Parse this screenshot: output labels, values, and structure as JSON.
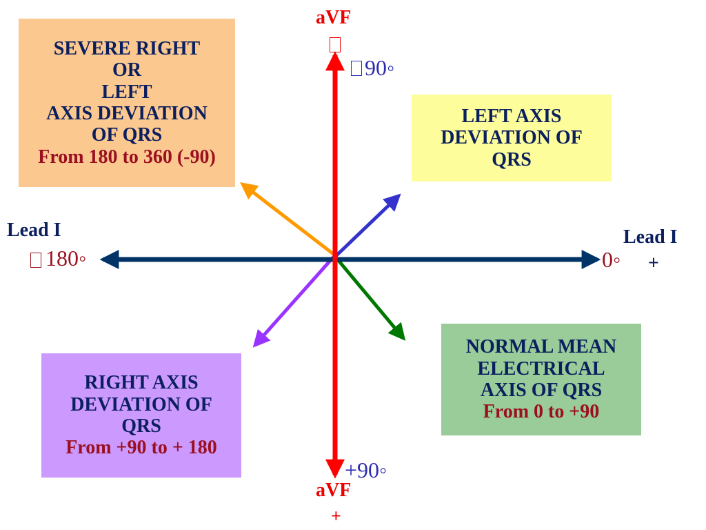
{
  "quadrants": {
    "severe": {
      "lines": [
        "SEVERE RIGHT",
        "OR",
        "LEFT",
        "AXIS DEVIATION",
        "OF QRS"
      ],
      "range": "From 180 to 360 (-90)",
      "bg": "#fbc890"
    },
    "left": {
      "lines": [
        "LEFT AXIS",
        "DEVIATION OF",
        "QRS"
      ],
      "bg": "#fdfd9b"
    },
    "normal": {
      "lines": [
        "NORMAL MEAN",
        "ELECTRICAL",
        "AXIS OF QRS"
      ],
      "range": "From 0 to +90",
      "bg": "#99cc99"
    },
    "right": {
      "lines": [
        "RIGHT AXIS",
        "DEVIATION OF",
        "QRS"
      ],
      "range": "From +90 to + 180",
      "bg": "#cc99ff"
    }
  },
  "labels": {
    "avf_top": "aVF",
    "avf_bottom": "aVF",
    "avf_bottom_sign": "+",
    "lead_left": "Lead I",
    "lead_right": "Lead I",
    "lead_right_sign": "+",
    "deg_top": "90◦",
    "deg_bottom": "+90◦",
    "deg_left": "180◦",
    "deg_right": "0◦"
  },
  "colors": {
    "avf_axis": "#ff0000",
    "lead_axis": "#003366",
    "severe_arrow": "#ff9900",
    "left_arrow": "#3333cc",
    "normal_arrow": "#007700",
    "right_arrow": "#9933ff",
    "text_navy": "#0b1f5e",
    "text_maroon": "#9b1020",
    "text_red": "#ee0000",
    "text_blue": "#2d2db0"
  },
  "icons": {
    "missing_glyph": "missing-glyph-icon"
  }
}
